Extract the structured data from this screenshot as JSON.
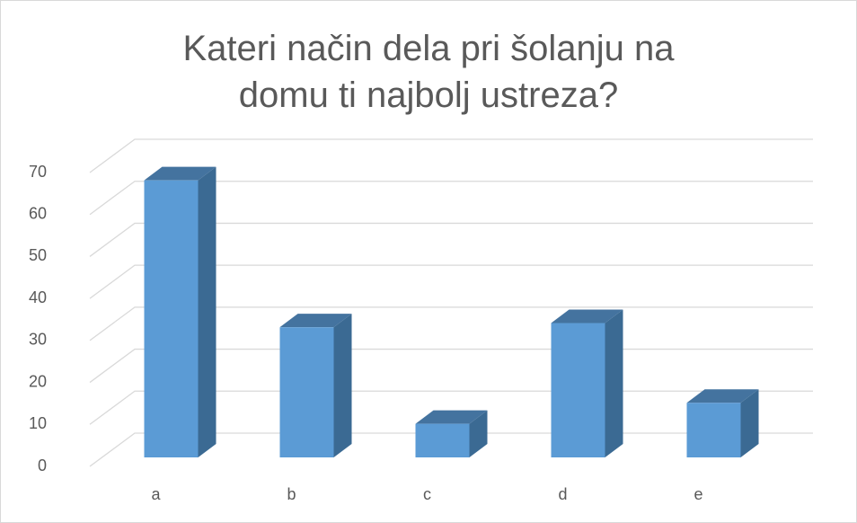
{
  "chart_data": {
    "type": "bar3d",
    "title": "Kateri način dela pri šolanju na domu ti najbolj ustreza?",
    "categories": [
      "a",
      "b",
      "c",
      "d",
      "e"
    ],
    "values": [
      66,
      31,
      8,
      32,
      13
    ],
    "color": "#5b9bd5",
    "ylim": [
      0,
      70
    ],
    "yticks": [
      0,
      10,
      20,
      30,
      40,
      50,
      60,
      70
    ],
    "grid": true
  }
}
